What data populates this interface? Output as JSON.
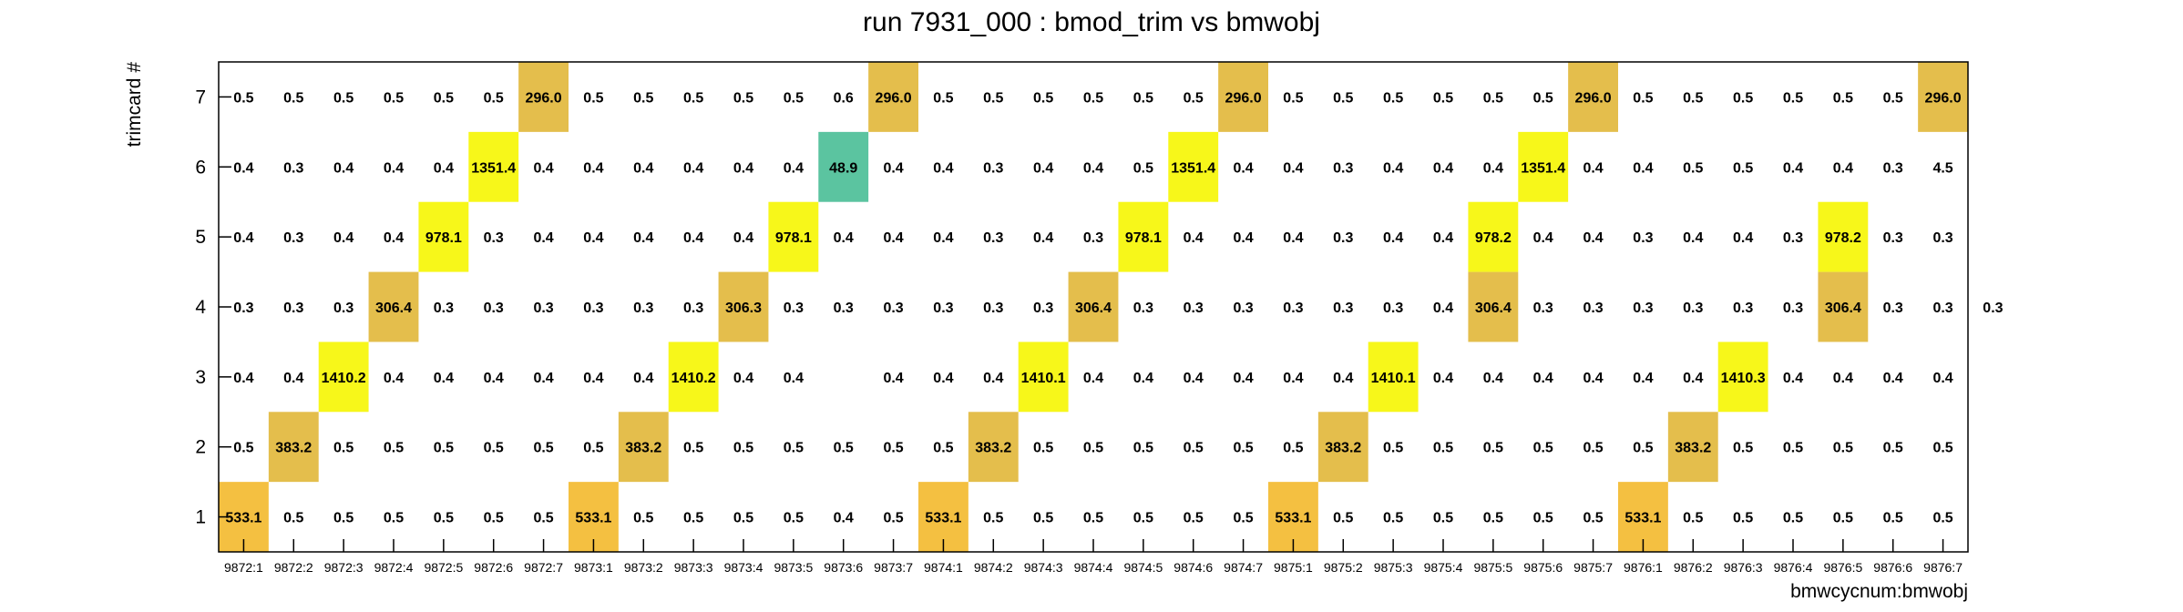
{
  "chart_data": {
    "type": "heatmap",
    "title": "run 7931_000 : bmod_trim vs bmwobj",
    "xlabel": "bmwcycnum:bmwobj",
    "ylabel": "trimcard #",
    "x_categories": [
      "9872:1",
      "9872:2",
      "9872:3",
      "9872:4",
      "9872:5",
      "9872:6",
      "9872:7",
      "9873:1",
      "9873:2",
      "9873:3",
      "9873:4",
      "9873:5",
      "9873:6",
      "9873:7",
      "9874:1",
      "9874:2",
      "9874:3",
      "9874:4",
      "9874:5",
      "9874:6",
      "9874:7",
      "9875:1",
      "9875:2",
      "9875:3",
      "9875:4",
      "9875:5",
      "9875:6",
      "9875:7",
      "9876:1",
      "9876:2",
      "9876:3",
      "9876:4",
      "9876:5",
      "9876:6",
      "9876:7"
    ],
    "y_categories": [
      "1",
      "2",
      "3",
      "4",
      "5",
      "6",
      "7"
    ],
    "z_range": [
      0,
      1410.3
    ],
    "colors": {
      "low": "#2f8ee0",
      "mid": "#5bc4a0",
      "peach": "#f4c041",
      "amber": "#e4be4c",
      "yellow": "#f7f71a",
      "frame": "#000000"
    },
    "rows": [
      {
        "y": "1",
        "values": [
          533.1,
          0.5,
          0.5,
          0.5,
          0.5,
          0.5,
          0.5,
          533.1,
          0.5,
          0.5,
          0.5,
          0.5,
          0.4,
          0.5,
          533.1,
          0.5,
          0.5,
          0.5,
          0.5,
          0.5,
          0.5,
          533.1,
          0.5,
          0.5,
          0.5,
          0.5,
          0.5,
          0.5,
          533.1,
          0.5,
          0.5,
          0.5,
          0.5,
          0.5,
          0.5
        ]
      },
      {
        "y": "2",
        "values": [
          0.5,
          383.2,
          0.5,
          0.5,
          0.5,
          0.5,
          0.5,
          0.5,
          383.2,
          0.5,
          0.5,
          0.5,
          0.5,
          0.5,
          0.5,
          383.2,
          0.5,
          0.5,
          0.5,
          0.5,
          0.5,
          0.5,
          383.2,
          0.5,
          0.5,
          0.5,
          0.5,
          0.5,
          0.5,
          383.2,
          0.5,
          0.5,
          0.5,
          0.5,
          0.5
        ]
      },
      {
        "y": "3",
        "values": [
          0.4,
          0.4,
          1410.2,
          0.4,
          0.4,
          0.4,
          0.4,
          0.4,
          0.4,
          1410.2,
          0.4,
          0.4,
          null,
          0.4,
          0.4,
          0.4,
          1410.1,
          0.4,
          0.4,
          0.4,
          0.4,
          0.4,
          0.4,
          1410.1,
          0.4,
          0.4,
          0.4,
          0.4,
          0.4,
          0.4,
          1410.3,
          0.4,
          0.4,
          0.4,
          0.4
        ]
      },
      {
        "y": "4",
        "values": [
          0.3,
          0.3,
          0.3,
          306.4,
          0.3,
          0.3,
          0.3,
          0.3,
          0.3,
          0.3,
          306.3,
          0.3,
          0.3,
          0.3,
          0.3,
          0.3,
          0.3,
          306.4,
          0.3,
          0.3,
          0.3,
          0.3,
          0.3,
          0.3,
          0.4,
          306.4,
          0.3,
          0.3,
          0.3,
          0.3,
          0.3,
          0.3,
          306.4,
          0.3,
          0.3,
          0.3
        ]
      },
      {
        "y": "5",
        "values": [
          0.4,
          0.3,
          0.4,
          0.4,
          978.1,
          0.3,
          0.4,
          0.4,
          0.4,
          0.4,
          0.4,
          978.1,
          0.4,
          0.4,
          0.4,
          0.3,
          0.4,
          0.3,
          978.1,
          0.4,
          0.4,
          0.4,
          0.3,
          0.4,
          0.4,
          978.2,
          0.4,
          0.4,
          0.3,
          0.4,
          0.4,
          0.3,
          978.2,
          0.3,
          0.3
        ]
      },
      {
        "y": "6",
        "values": [
          0.4,
          0.3,
          0.4,
          0.4,
          0.4,
          1351.4,
          0.4,
          0.4,
          0.4,
          0.4,
          0.4,
          0.4,
          48.9,
          0.4,
          0.4,
          0.3,
          0.4,
          0.4,
          0.5,
          1351.4,
          0.4,
          0.4,
          0.3,
          0.4,
          0.4,
          0.4,
          1351.4,
          0.4,
          0.4,
          0.5,
          0.5,
          0.4,
          0.4,
          0.3,
          4.5
        ]
      },
      {
        "y": "7",
        "values": [
          0.5,
          0.5,
          0.5,
          0.5,
          0.5,
          0.5,
          296.0,
          0.5,
          0.5,
          0.5,
          0.5,
          0.5,
          0.6,
          296.0,
          0.5,
          0.5,
          0.5,
          0.5,
          0.5,
          0.5,
          296.0,
          0.5,
          0.5,
          0.5,
          0.5,
          0.5,
          0.5,
          296.0,
          0.5,
          0.5,
          0.5,
          0.5,
          0.5,
          0.5,
          296.0
        ]
      }
    ],
    "grid": false,
    "legend": "none",
    "stats_box": false,
    "value_labels": true
  }
}
